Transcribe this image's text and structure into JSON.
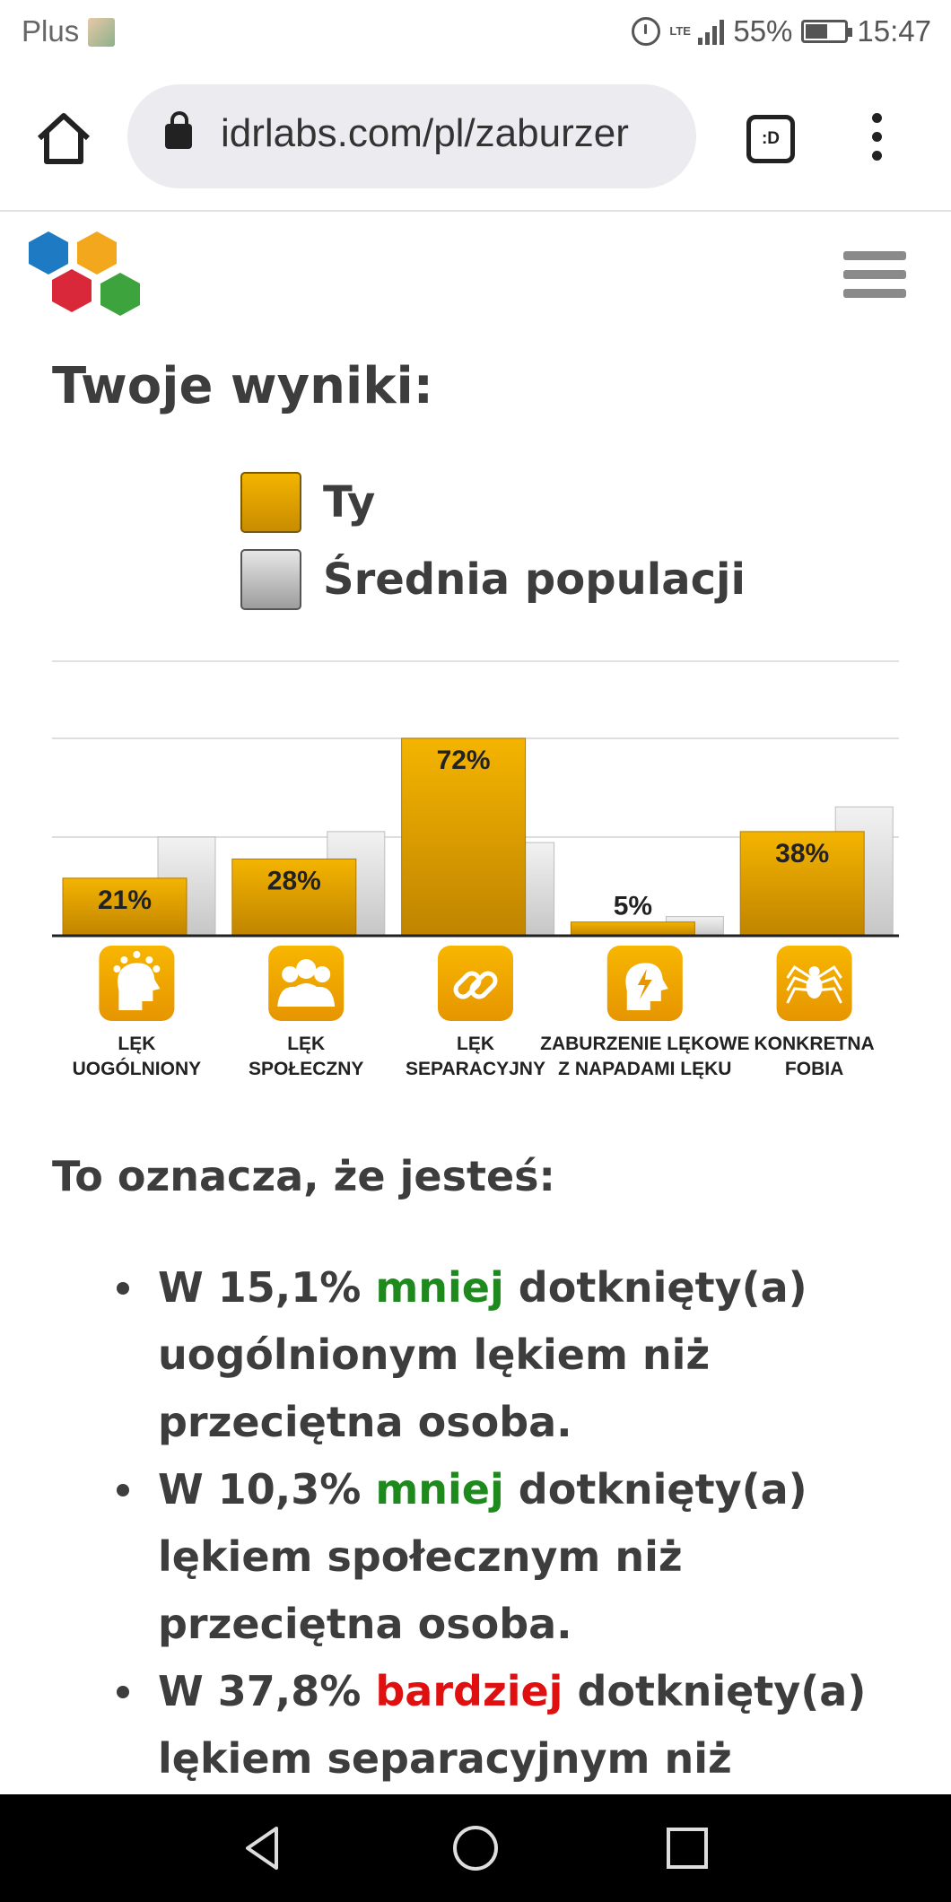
{
  "status_bar": {
    "carrier": "Plus",
    "network": "LTE",
    "battery": "55%",
    "time": "15:47"
  },
  "browser": {
    "url": "idrlabs.com/pl/zaburzer",
    "tab_switcher_label": ":D"
  },
  "page": {
    "title": "Twoje wyniki:",
    "legend": [
      {
        "label": "Ty",
        "color": "#e0a000"
      },
      {
        "label": "Średnia populacji",
        "color": "#c4c4c4"
      }
    ],
    "subtitle": "To oznacza, że jesteś:",
    "results": [
      {
        "prefix": "W 15,1% ",
        "qualifier": "mniej",
        "qualifier_type": "less",
        "suffix": " dotknięty(a) uogólnionym lękiem niż przeciętna osoba."
      },
      {
        "prefix": "W 10,3% ",
        "qualifier": "mniej",
        "qualifier_type": "less",
        "suffix": " dotknięty(a) lękiem społecznym niż przeciętna osoba."
      },
      {
        "prefix": "W 37,8% ",
        "qualifier": "bardziej",
        "qualifier_type": "more",
        "suffix": " dotknięty(a) lękiem separacyjnym niż"
      }
    ]
  },
  "chart_data": {
    "type": "bar",
    "categories": [
      [
        "LĘK",
        "UOGÓLNIONY"
      ],
      [
        "LĘK",
        "SPOŁECZNY"
      ],
      [
        "LĘK",
        "SEPARACYJNY"
      ],
      [
        "ZABURZENIE LĘKOWE",
        "Z NAPADAMI LĘKU"
      ],
      [
        "KONKRETNA",
        "FOBIA"
      ]
    ],
    "icons": [
      "head-ideas-icon",
      "group-icon",
      "chain-link-icon",
      "head-lightning-icon",
      "spider-icon"
    ],
    "series": [
      {
        "name": "Ty",
        "values": [
          21,
          28,
          72,
          5,
          38
        ],
        "labels": [
          "21%",
          "28%",
          "72%",
          "5%",
          "38%"
        ]
      },
      {
        "name": "Średnia populacji",
        "values": [
          36,
          38,
          34,
          7,
          47
        ]
      }
    ],
    "ylim": [
      0,
      72
    ],
    "grid": true,
    "colors": {
      "you": "#e0a000",
      "avg": "#c8c8c8",
      "icon_bg": "#f0a800"
    }
  }
}
